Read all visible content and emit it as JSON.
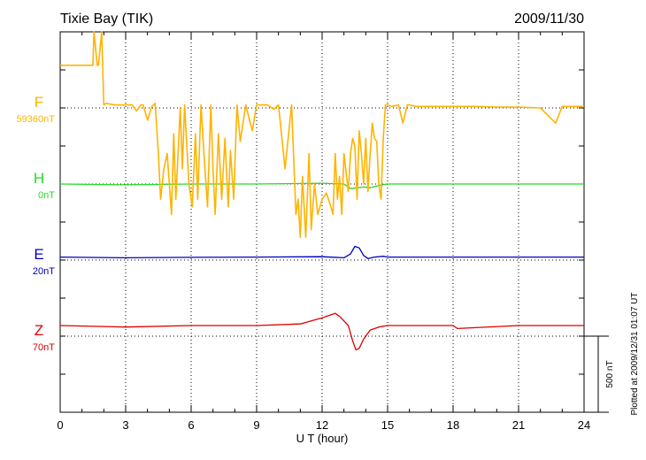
{
  "header": {
    "station": "Tixie Bay (TIK)",
    "date": "2009/11/30"
  },
  "plotted_note": "Plotted at 2009/12/31 01:07 UT",
  "colors": {
    "F": "#ffb300",
    "H": "#22dd22",
    "E": "#0000bb",
    "Z": "#dd0000"
  },
  "chart_data": {
    "type": "line",
    "title": "",
    "xlabel": "U T (hour)",
    "ylabel": "",
    "xlim": [
      0,
      24
    ],
    "x_ticks": [
      "0",
      "3",
      "6",
      "9",
      "12",
      "15",
      "18",
      "21",
      "24"
    ],
    "grid": true,
    "scale_bar": {
      "label": "500 nT",
      "nT": 500
    },
    "components": [
      {
        "label": "F",
        "baseline": "59360nT"
      },
      {
        "label": "H",
        "baseline": "0nT"
      },
      {
        "label": "E",
        "baseline": "20nT"
      },
      {
        "label": "Z",
        "baseline": "70nT"
      }
    ],
    "series": [
      {
        "name": "F",
        "x": [
          0,
          1.5,
          1.55,
          1.7,
          1.75,
          1.9,
          2.0,
          2.1,
          2.5,
          3.0,
          3.3,
          3.5,
          3.7,
          3.8,
          4.0,
          4.2,
          4.35,
          4.5,
          4.6,
          4.75,
          4.9,
          5.1,
          5.2,
          5.3,
          5.5,
          5.6,
          5.7,
          5.9,
          6.05,
          6.2,
          6.3,
          6.45,
          6.6,
          6.75,
          6.9,
          7.0,
          7.1,
          7.25,
          7.4,
          7.55,
          7.7,
          7.8,
          7.95,
          8.1,
          8.25,
          8.5,
          8.8,
          9.0,
          9.2,
          9.5,
          9.8,
          10.0,
          10.3,
          10.6,
          10.8,
          10.9,
          11.0,
          11.1,
          11.25,
          11.4,
          11.5,
          11.65,
          11.8,
          12.0,
          12.2,
          12.4,
          12.5,
          12.6,
          12.7,
          12.8,
          12.9,
          13.0,
          13.2,
          13.3,
          13.4,
          13.5,
          13.6,
          13.7,
          13.8,
          13.9,
          14.0,
          14.1,
          14.2,
          14.3,
          14.4,
          14.5,
          14.6,
          14.7,
          14.8,
          14.9,
          15.0,
          15.2,
          15.5,
          15.7,
          15.9,
          16.0,
          16.3,
          17.0,
          18.0,
          19.0,
          20.0,
          21.0,
          22.0,
          22.7,
          23.0,
          23.5,
          24.0
        ],
        "values": [
          280,
          280,
          520,
          280,
          280,
          520,
          20,
          30,
          20,
          20,
          20,
          -20,
          20,
          20,
          -80,
          10,
          30,
          -300,
          -600,
          -400,
          -300,
          -700,
          -170,
          -600,
          0,
          -400,
          20,
          -500,
          -650,
          -170,
          -600,
          20,
          -330,
          -650,
          20,
          -400,
          -700,
          -170,
          -600,
          -200,
          -650,
          -280,
          -600,
          20,
          -220,
          20,
          -150,
          20,
          20,
          20,
          -10,
          20,
          -400,
          20,
          -700,
          -600,
          -850,
          -450,
          -850,
          -300,
          -800,
          -500,
          -700,
          -600,
          -560,
          -650,
          -700,
          -300,
          -600,
          -450,
          -700,
          -300,
          -550,
          -300,
          -200,
          -250,
          -600,
          -150,
          -300,
          -500,
          -200,
          -550,
          -300,
          -100,
          -200,
          -220,
          -500,
          -600,
          -200,
          20,
          20,
          10,
          20,
          -100,
          20,
          20,
          10,
          10,
          10,
          10,
          5,
          5,
          0,
          -100,
          10,
          10,
          10
        ]
      },
      {
        "name": "H",
        "x": [
          0,
          3,
          6,
          9,
          12,
          13.0,
          13.3,
          13.6,
          13.9,
          14.2,
          14.6,
          15,
          18,
          21,
          24
        ],
        "values": [
          0,
          -5,
          0,
          0,
          5,
          0,
          -30,
          -25,
          -20,
          -25,
          -10,
          0,
          0,
          0,
          0
        ]
      },
      {
        "name": "E",
        "x": [
          0,
          3,
          6,
          9,
          12,
          13.0,
          13.3,
          13.5,
          13.7,
          13.9,
          14.1,
          14.4,
          14.8,
          15,
          18,
          21,
          24
        ],
        "values": [
          20,
          15,
          18,
          20,
          22,
          15,
          40,
          90,
          80,
          30,
          10,
          20,
          25,
          20,
          20,
          20,
          20
        ]
      },
      {
        "name": "Z",
        "x": [
          0,
          3,
          6,
          9,
          11.0,
          11.5,
          12.0,
          12.4,
          12.6,
          12.8,
          13.0,
          13.2,
          13.4,
          13.55,
          13.7,
          13.9,
          14.2,
          14.6,
          15,
          17,
          18,
          18.2,
          21,
          24
        ],
        "values": [
          70,
          60,
          70,
          70,
          80,
          100,
          120,
          140,
          150,
          130,
          100,
          70,
          -30,
          -90,
          -80,
          -20,
          40,
          60,
          70,
          70,
          70,
          50,
          70,
          70
        ]
      }
    ]
  }
}
